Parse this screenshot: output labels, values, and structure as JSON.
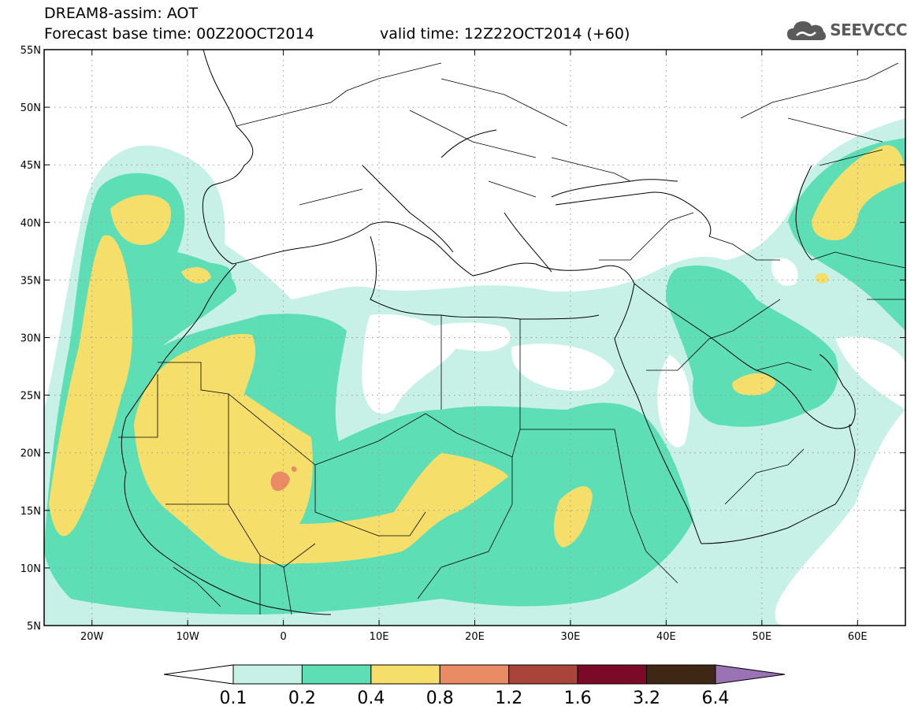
{
  "header": {
    "title_line1": "DREAM8-assim: AOT",
    "forecast_text": "Forecast base time: 00Z20OCT2014",
    "valid_text": "valid time: 12Z22OCT2014 (+60)"
  },
  "logo": {
    "text": "SEEVCCC",
    "icon": "cloud-icon"
  },
  "map": {
    "lon_ticks": [
      "20W",
      "10W",
      "0",
      "10E",
      "20E",
      "30E",
      "40E",
      "50E",
      "60E"
    ],
    "lat_ticks": [
      "5N",
      "10N",
      "15N",
      "20N",
      "25N",
      "30N",
      "35N",
      "40N",
      "45N",
      "50N",
      "55N"
    ],
    "grid": true
  },
  "colorbar": {
    "levels": [
      "0.1",
      "0.2",
      "0.4",
      "0.8",
      "1.2",
      "1.6",
      "3.2",
      "6.4"
    ],
    "colors": [
      "#c7f0e6",
      "#5ddeb5",
      "#f5df6a",
      "#e98c66",
      "#a8443a",
      "#7a0a28",
      "#3e2715",
      "#9b73b4"
    ],
    "under_color": "#ffffff"
  }
}
